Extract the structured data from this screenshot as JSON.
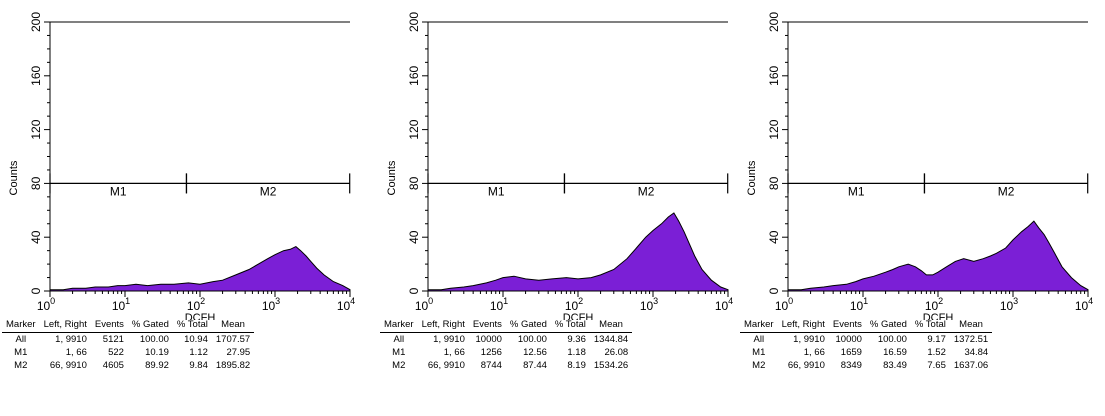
{
  "chart_data": [
    {
      "type": "area",
      "xlabel": "DCFH",
      "ylabel": "Counts",
      "xscale": "log",
      "xlim": [
        1,
        10000
      ],
      "ylim": [
        0,
        200
      ],
      "yticks": [
        "0",
        "40",
        "80",
        "120",
        "160",
        "200"
      ],
      "xticks": [
        {
          "base": "10",
          "exp": "0"
        },
        {
          "base": "10",
          "exp": "1"
        },
        {
          "base": "10",
          "exp": "2"
        },
        {
          "base": "10",
          "exp": "3"
        },
        {
          "base": "10",
          "exp": "4"
        }
      ],
      "fill_color": "#7b1fd6",
      "markers": [
        {
          "label": "M1",
          "left": 1,
          "right": 66,
          "y": 80
        },
        {
          "label": "M2",
          "left": 66,
          "right": 9910,
          "y": 80
        }
      ],
      "histogram": {
        "x": [
          1,
          1.5,
          2,
          3,
          4,
          6,
          8,
          10,
          14,
          20,
          30,
          45,
          70,
          100,
          150,
          200,
          300,
          450,
          600,
          800,
          1000,
          1300,
          1600,
          1900,
          2200,
          2600,
          3000,
          3600,
          4500,
          6000,
          8000,
          10000
        ],
        "y": [
          1,
          1,
          2,
          2,
          3,
          3,
          4,
          4,
          5,
          4,
          5,
          5,
          6,
          5,
          7,
          8,
          12,
          16,
          20,
          24,
          27,
          30,
          31,
          33,
          30,
          26,
          22,
          17,
          12,
          7,
          4,
          1
        ]
      },
      "stats": {
        "columns": [
          "Marker",
          "Left, Right",
          "Events",
          "% Gated",
          "% Total",
          "Mean"
        ],
        "rows": [
          [
            "All",
            "1, 9910",
            "5121",
            "100.00",
            "10.94",
            "1707.57"
          ],
          [
            "M1",
            "1, 66",
            "522",
            "10.19",
            "1.12",
            "27.95"
          ],
          [
            "M2",
            "66, 9910",
            "4605",
            "89.92",
            "9.84",
            "1895.82"
          ]
        ]
      }
    },
    {
      "type": "area",
      "xlabel": "DCFH",
      "ylabel": "Counts",
      "xscale": "log",
      "xlim": [
        1,
        10000
      ],
      "ylim": [
        0,
        200
      ],
      "yticks": [
        "0",
        "40",
        "80",
        "120",
        "160",
        "200"
      ],
      "xticks": [
        {
          "base": "10",
          "exp": "0"
        },
        {
          "base": "10",
          "exp": "1"
        },
        {
          "base": "10",
          "exp": "2"
        },
        {
          "base": "10",
          "exp": "3"
        },
        {
          "base": "10",
          "exp": "4"
        }
      ],
      "fill_color": "#7b1fd6",
      "markers": [
        {
          "label": "M1",
          "left": 1,
          "right": 66,
          "y": 80
        },
        {
          "label": "M2",
          "left": 66,
          "right": 9910,
          "y": 80
        }
      ],
      "histogram": {
        "x": [
          1,
          1.5,
          2,
          3,
          4,
          6,
          8,
          10,
          14,
          20,
          30,
          45,
          70,
          100,
          150,
          200,
          300,
          450,
          600,
          800,
          1000,
          1300,
          1600,
          1900,
          2200,
          2600,
          3000,
          3600,
          4500,
          6000,
          8000,
          10000
        ],
        "y": [
          1,
          1,
          2,
          3,
          4,
          6,
          8,
          10,
          11,
          9,
          8,
          9,
          10,
          9,
          10,
          12,
          16,
          24,
          32,
          40,
          45,
          50,
          55,
          58,
          52,
          44,
          36,
          26,
          16,
          8,
          3,
          1
        ]
      },
      "stats": {
        "columns": [
          "Marker",
          "Left, Right",
          "Events",
          "% Gated",
          "% Total",
          "Mean"
        ],
        "rows": [
          [
            "All",
            "1, 9910",
            "10000",
            "100.00",
            "9.36",
            "1344.84"
          ],
          [
            "M1",
            "1, 66",
            "1256",
            "12.56",
            "1.18",
            "26.08"
          ],
          [
            "M2",
            "66, 9910",
            "8744",
            "87.44",
            "8.19",
            "1534.26"
          ]
        ]
      }
    },
    {
      "type": "area",
      "xlabel": "DCFH",
      "ylabel": "Counts",
      "xscale": "log",
      "xlim": [
        1,
        10000
      ],
      "ylim": [
        0,
        200
      ],
      "yticks": [
        "0",
        "40",
        "80",
        "120",
        "160",
        "200"
      ],
      "xticks": [
        {
          "base": "10",
          "exp": "0"
        },
        {
          "base": "10",
          "exp": "1"
        },
        {
          "base": "10",
          "exp": "2"
        },
        {
          "base": "10",
          "exp": "3"
        },
        {
          "base": "10",
          "exp": "4"
        }
      ],
      "fill_color": "#7b1fd6",
      "markers": [
        {
          "label": "M1",
          "left": 1,
          "right": 66,
          "y": 80
        },
        {
          "label": "M2",
          "left": 66,
          "right": 9910,
          "y": 80
        }
      ],
      "histogram": {
        "x": [
          1,
          1.5,
          2,
          3,
          4,
          6,
          8,
          10,
          14,
          20,
          25,
          30,
          40,
          50,
          60,
          70,
          85,
          100,
          130,
          170,
          220,
          300,
          400,
          500,
          600,
          800,
          1000,
          1300,
          1600,
          1900,
          2200,
          2600,
          3000,
          3600,
          4500,
          6000,
          8000,
          10000
        ],
        "y": [
          1,
          1,
          2,
          3,
          4,
          5,
          7,
          9,
          11,
          14,
          16,
          18,
          20,
          18,
          15,
          12,
          12,
          14,
          18,
          22,
          24,
          22,
          24,
          26,
          28,
          32,
          38,
          44,
          48,
          52,
          47,
          42,
          36,
          28,
          18,
          10,
          4,
          1
        ]
      },
      "stats": {
        "columns": [
          "Marker",
          "Left, Right",
          "Events",
          "% Gated",
          "% Total",
          "Mean"
        ],
        "rows": [
          [
            "All",
            "1, 9910",
            "10000",
            "100.00",
            "9.17",
            "1372.51"
          ],
          [
            "M1",
            "1, 66",
            "1659",
            "16.59",
            "1.52",
            "34.84"
          ],
          [
            "M2",
            "66, 9910",
            "8349",
            "83.49",
            "7.65",
            "1637.06"
          ]
        ]
      }
    }
  ]
}
